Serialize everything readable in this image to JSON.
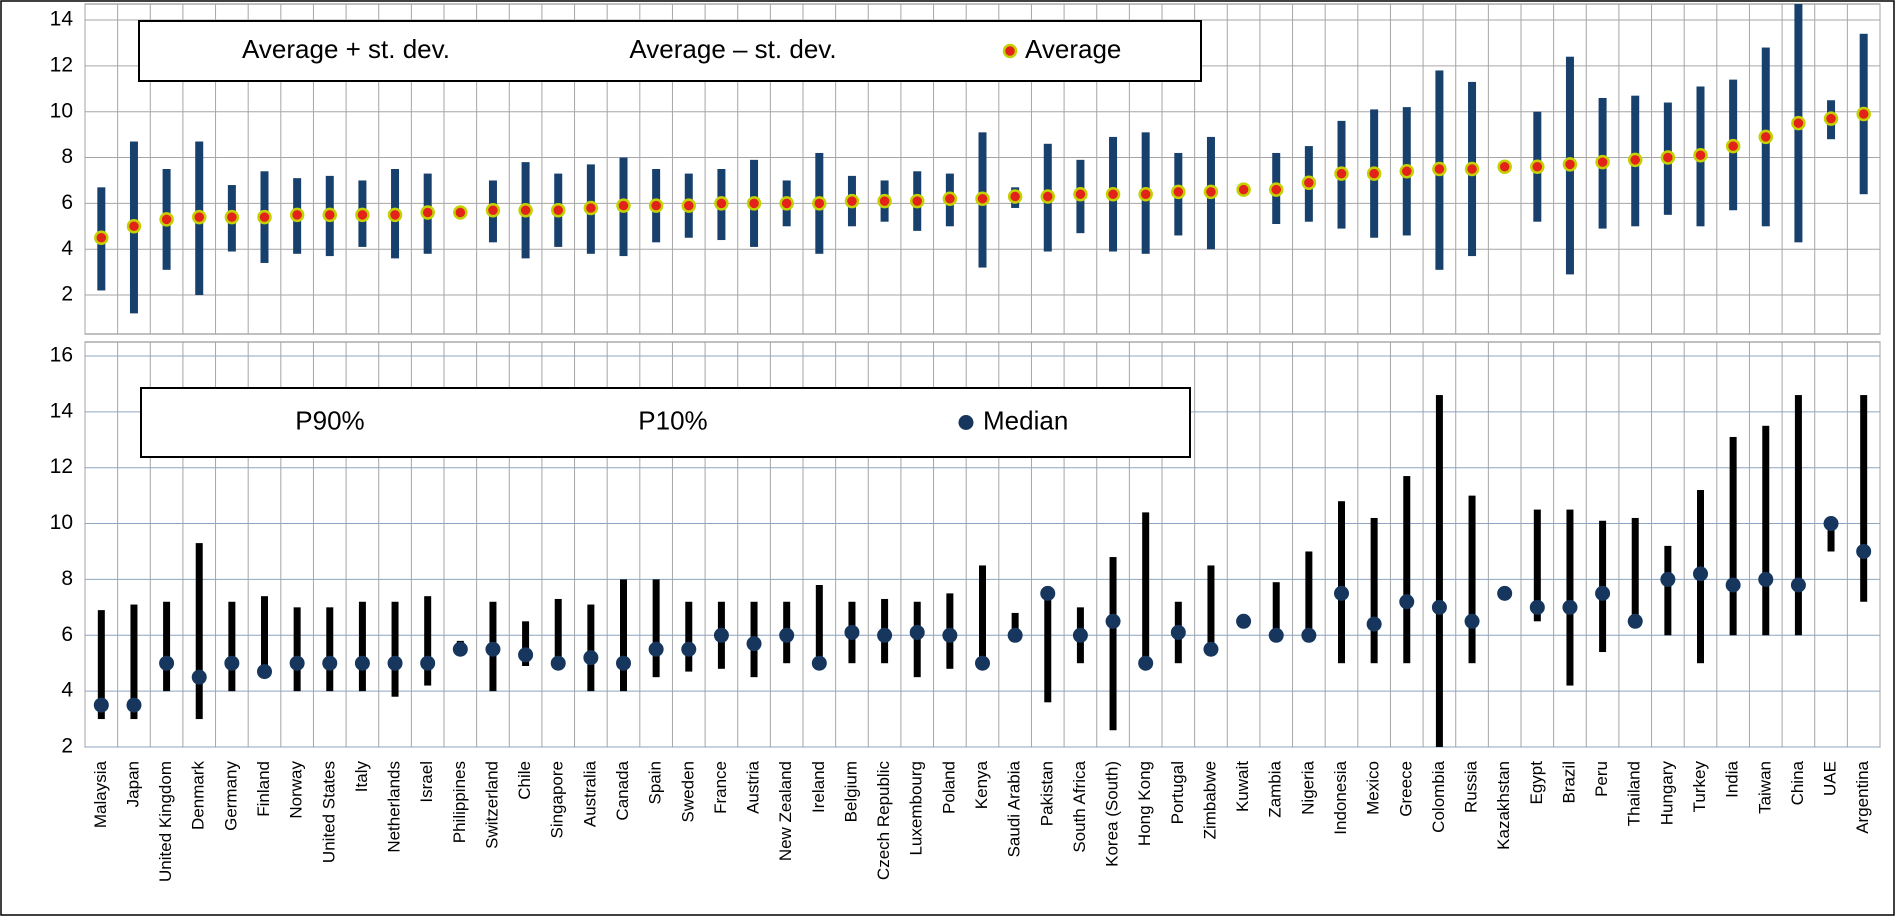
{
  "chart_data": [
    {
      "type": "range",
      "ylim": [
        0.3,
        14.7
      ],
      "yticks": [
        2,
        4,
        6,
        8,
        10,
        12,
        14
      ],
      "grid": true,
      "legend": "upper left",
      "series": [
        {
          "name": "Average + st. dev.",
          "color": "#17406d",
          "role": "upper",
          "values": [
            6.7,
            8.7,
            7.5,
            8.7,
            6.8,
            7.4,
            7.1,
            7.2,
            7.0,
            7.5,
            7.3,
            5.7,
            7.0,
            7.8,
            7.3,
            7.7,
            8.0,
            7.5,
            7.3,
            7.5,
            7.9,
            7.0,
            8.2,
            7.2,
            7.0,
            7.4,
            7.3,
            9.1,
            6.7,
            8.6,
            7.9,
            8.9,
            9.1,
            8.2,
            8.9,
            6.7,
            8.2,
            8.5,
            9.6,
            10.1,
            10.2,
            11.8,
            11.3,
            7.7,
            10.0,
            12.4,
            10.6,
            10.7,
            10.4,
            11.1,
            11.4,
            12.8,
            14.7,
            10.5,
            13.4
          ]
        },
        {
          "name": "Average – st. dev.",
          "color": "#17406d",
          "role": "lower",
          "values": [
            2.2,
            1.2,
            3.1,
            2.0,
            3.9,
            3.4,
            3.8,
            3.7,
            4.1,
            3.6,
            3.8,
            5.5,
            4.3,
            3.6,
            4.1,
            3.8,
            3.7,
            4.3,
            4.5,
            4.4,
            4.1,
            5.0,
            3.8,
            5.0,
            5.2,
            4.8,
            5.0,
            3.2,
            5.8,
            3.9,
            4.7,
            3.9,
            3.8,
            4.6,
            4.0,
            6.4,
            5.1,
            5.2,
            4.9,
            4.5,
            4.6,
            3.1,
            3.7,
            7.4,
            5.2,
            2.9,
            4.9,
            5.0,
            5.5,
            5.0,
            5.7,
            5.0,
            4.3,
            8.8,
            6.4
          ]
        },
        {
          "name": "Average",
          "color": "#e32219",
          "edgecolor": "#c3d100",
          "role": "center",
          "values": [
            4.5,
            5.0,
            5.3,
            5.4,
            5.4,
            5.4,
            5.5,
            5.5,
            5.5,
            5.5,
            5.6,
            5.6,
            5.7,
            5.7,
            5.7,
            5.8,
            5.9,
            5.9,
            5.9,
            6.0,
            6.0,
            6.0,
            6.0,
            6.1,
            6.1,
            6.1,
            6.2,
            6.2,
            6.3,
            6.3,
            6.4,
            6.4,
            6.4,
            6.5,
            6.5,
            6.6,
            6.6,
            6.9,
            7.3,
            7.3,
            7.4,
            7.5,
            7.5,
            7.6,
            7.6,
            7.7,
            7.8,
            7.9,
            8.0,
            8.1,
            8.5,
            8.9,
            9.5,
            9.7,
            9.9
          ]
        }
      ]
    },
    {
      "type": "range",
      "ylim": [
        2,
        16.5
      ],
      "yticks": [
        2,
        4,
        6,
        8,
        10,
        12,
        14,
        16
      ],
      "grid": true,
      "legend": "upper left",
      "categories": [
        "Malaysia",
        "Japan",
        "United Kingdom",
        "Denmark",
        "Germany",
        "Finland",
        "Norway",
        "United States",
        "Italy",
        "Netherlands",
        "Israel",
        "Philippines",
        "Switzerland",
        "Chile",
        "Singapore",
        "Australia",
        "Canada",
        "Spain",
        "Sweden",
        "France",
        "Austria",
        "New Zealand",
        "Ireland",
        "Belgium",
        "Czech Republic",
        "Luxembourg",
        "Poland",
        "Kenya",
        "Saudi Arabia",
        "Pakistan",
        "South Africa",
        "Korea (South)",
        "Hong Kong",
        "Portugal",
        "Zimbabwe",
        "Kuwait",
        "Zambia",
        "Nigeria",
        "Indonesia",
        "Mexico",
        "Greece",
        "Colombia",
        "Russia",
        "Kazakhstan",
        "Egypt",
        "Brazil",
        "Peru",
        "Thailand",
        "Hungary",
        "Turkey",
        "India",
        "Taiwan",
        "China",
        "UAE",
        "Argentina"
      ],
      "series": [
        {
          "name": "P90%",
          "color": "#000000",
          "role": "upper",
          "values": [
            6.9,
            7.1,
            7.2,
            9.3,
            7.2,
            7.4,
            7.0,
            7.0,
            7.2,
            7.2,
            7.4,
            5.8,
            7.2,
            6.5,
            7.3,
            7.1,
            8.0,
            8.0,
            7.2,
            7.2,
            7.2,
            7.2,
            7.8,
            7.2,
            7.3,
            7.2,
            7.5,
            8.5,
            6.8,
            7.5,
            7.0,
            8.8,
            10.4,
            7.2,
            8.5,
            6.7,
            7.9,
            9.0,
            10.8,
            10.2,
            11.7,
            14.6,
            11.0,
            7.5,
            10.5,
            10.5,
            10.1,
            10.2,
            9.2,
            11.2,
            13.1,
            13.5,
            14.6,
            10.0,
            14.6
          ]
        },
        {
          "name": "P10%",
          "color": "#000000",
          "role": "lower",
          "values": [
            3.0,
            3.0,
            4.0,
            3.0,
            4.0,
            4.5,
            4.0,
            4.0,
            4.0,
            3.8,
            4.2,
            5.3,
            4.0,
            4.9,
            5.0,
            4.0,
            4.0,
            4.5,
            4.7,
            4.8,
            4.5,
            5.0,
            5.0,
            5.0,
            5.0,
            4.5,
            4.8,
            5.0,
            6.0,
            3.6,
            5.0,
            2.6,
            5.0,
            5.0,
            5.5,
            6.4,
            6.0,
            6.0,
            5.0,
            5.0,
            5.0,
            2.0,
            5.0,
            7.5,
            6.5,
            4.2,
            5.4,
            6.5,
            6.0,
            5.0,
            6.0,
            6.0,
            6.0,
            9.0,
            7.2
          ]
        },
        {
          "name": "Median",
          "color": "#17365d",
          "role": "center",
          "values": [
            3.5,
            3.5,
            5.0,
            4.5,
            5.0,
            4.7,
            5.0,
            5.0,
            5.0,
            5.0,
            5.0,
            5.5,
            5.5,
            5.3,
            5.0,
            5.2,
            5.0,
            5.5,
            5.5,
            6.0,
            5.7,
            6.0,
            5.0,
            6.1,
            6.0,
            6.1,
            6.0,
            5.0,
            6.0,
            7.5,
            6.0,
            6.5,
            5.0,
            6.1,
            5.5,
            6.5,
            6.0,
            6.0,
            7.5,
            6.4,
            7.2,
            7.0,
            6.5,
            7.5,
            7.0,
            7.0,
            7.5,
            6.5,
            8.0,
            8.2,
            7.8,
            8.0,
            7.8,
            10.0,
            9.0
          ]
        }
      ]
    }
  ]
}
